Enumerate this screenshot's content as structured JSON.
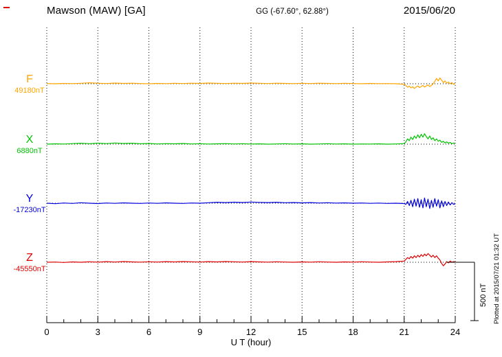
{
  "header": {
    "station": "Mawson (MAW)  [GA]",
    "coords": "GG (-67.60°,  62.88°)",
    "date": "2015/06/20"
  },
  "footer": {
    "plotted_at": "Plotted at 2015/07/21 01:32 UT"
  },
  "colors": {
    "F": "#ffa500",
    "X": "#00c400",
    "Y": "#0000dd",
    "Z": "#e00000",
    "axis": "#000000",
    "mark": "#e00000"
  },
  "chart_data": {
    "type": "line",
    "title": "Mawson (MAW)  [GA]",
    "subtitle": "GG (-67.60°,  62.88°)",
    "date": "2015/06/20",
    "xlabel": "U T (hour)",
    "unit": "nT",
    "xlim": [
      0,
      24
    ],
    "xticks": [
      0,
      3,
      6,
      9,
      12,
      15,
      18,
      21,
      24
    ],
    "grid": "dotted-vertical",
    "scale_bar": {
      "label": "500 nT",
      "value_nT": 500
    },
    "series": [
      {
        "name": "F",
        "baseline_label": "49180nT",
        "baseline_nT": 49180,
        "color": "#ffa500",
        "points": [
          [
            0,
            2
          ],
          [
            0.5,
            0
          ],
          [
            1,
            3
          ],
          [
            1.5,
            1
          ],
          [
            2,
            4
          ],
          [
            2.5,
            8
          ],
          [
            3,
            5
          ],
          [
            3.5,
            2
          ],
          [
            4,
            6
          ],
          [
            4.5,
            3
          ],
          [
            5,
            5
          ],
          [
            5.5,
            2
          ],
          [
            6,
            0
          ],
          [
            6.5,
            3
          ],
          [
            7,
            1
          ],
          [
            7.5,
            4
          ],
          [
            8,
            2
          ],
          [
            8.5,
            5
          ],
          [
            9,
            3
          ],
          [
            9.5,
            6
          ],
          [
            10,
            4
          ],
          [
            10.5,
            2
          ],
          [
            11,
            5
          ],
          [
            11.5,
            3
          ],
          [
            12,
            6
          ],
          [
            12.5,
            4
          ],
          [
            13,
            2
          ],
          [
            13.5,
            5
          ],
          [
            14,
            3
          ],
          [
            14.5,
            1
          ],
          [
            15,
            4
          ],
          [
            15.5,
            2
          ],
          [
            16,
            5
          ],
          [
            16.5,
            3
          ],
          [
            17,
            1
          ],
          [
            17.5,
            4
          ],
          [
            18,
            2
          ],
          [
            18.5,
            0
          ],
          [
            19,
            3
          ],
          [
            19.5,
            1
          ],
          [
            20,
            2
          ],
          [
            20.5,
            0
          ],
          [
            21,
            -5
          ],
          [
            21.1,
            -15
          ],
          [
            21.2,
            -30
          ],
          [
            21.3,
            -20
          ],
          [
            21.4,
            -35
          ],
          [
            21.5,
            -25
          ],
          [
            21.6,
            -40
          ],
          [
            21.7,
            -28
          ],
          [
            21.8,
            -18
          ],
          [
            21.9,
            -33
          ],
          [
            22,
            -24
          ],
          [
            22.1,
            -14
          ],
          [
            22.2,
            -28
          ],
          [
            22.3,
            -18
          ],
          [
            22.4,
            -10
          ],
          [
            22.5,
            -24
          ],
          [
            22.6,
            -14
          ],
          [
            22.7,
            0
          ],
          [
            22.8,
            20
          ],
          [
            22.9,
            45
          ],
          [
            23,
            25
          ],
          [
            23.1,
            50
          ],
          [
            23.2,
            30
          ],
          [
            23.3,
            10
          ],
          [
            23.4,
            25
          ],
          [
            23.5,
            5
          ],
          [
            23.6,
            15
          ],
          [
            23.7,
            0
          ],
          [
            23.8,
            10
          ],
          [
            23.9,
            -5
          ],
          [
            24,
            0
          ]
        ]
      },
      {
        "name": "X",
        "baseline_label": "6880nT",
        "baseline_nT": 6880,
        "color": "#00c400",
        "points": [
          [
            0,
            0
          ],
          [
            0.5,
            3
          ],
          [
            1,
            1
          ],
          [
            1.5,
            5
          ],
          [
            2,
            8
          ],
          [
            2.5,
            4
          ],
          [
            3,
            9
          ],
          [
            3.5,
            5
          ],
          [
            4,
            10
          ],
          [
            4.5,
            6
          ],
          [
            5,
            8
          ],
          [
            5.5,
            4
          ],
          [
            6,
            6
          ],
          [
            6.5,
            2
          ],
          [
            7,
            5
          ],
          [
            7.5,
            3
          ],
          [
            8,
            6
          ],
          [
            8.5,
            2
          ],
          [
            9,
            4
          ],
          [
            9.5,
            1
          ],
          [
            10,
            3
          ],
          [
            10.5,
            5
          ],
          [
            11,
            2
          ],
          [
            11.5,
            4
          ],
          [
            12,
            1
          ],
          [
            12.5,
            3
          ],
          [
            13,
            0
          ],
          [
            13.5,
            2
          ],
          [
            14,
            4
          ],
          [
            14.5,
            1
          ],
          [
            15,
            3
          ],
          [
            15.5,
            0
          ],
          [
            16,
            2
          ],
          [
            16.5,
            4
          ],
          [
            17,
            1
          ],
          [
            17.5,
            3
          ],
          [
            18,
            0
          ],
          [
            18.5,
            2
          ],
          [
            19,
            1
          ],
          [
            19.5,
            3
          ],
          [
            20,
            0
          ],
          [
            20.5,
            2
          ],
          [
            21,
            5
          ],
          [
            21.1,
            20
          ],
          [
            21.2,
            45
          ],
          [
            21.3,
            30
          ],
          [
            21.4,
            60
          ],
          [
            21.5,
            40
          ],
          [
            21.6,
            70
          ],
          [
            21.7,
            50
          ],
          [
            21.8,
            80
          ],
          [
            21.9,
            55
          ],
          [
            22,
            85
          ],
          [
            22.1,
            60
          ],
          [
            22.2,
            90
          ],
          [
            22.3,
            65
          ],
          [
            22.4,
            45
          ],
          [
            22.5,
            70
          ],
          [
            22.6,
            40
          ],
          [
            22.7,
            55
          ],
          [
            22.8,
            30
          ],
          [
            22.9,
            45
          ],
          [
            23,
            25
          ],
          [
            23.1,
            35
          ],
          [
            23.2,
            15
          ],
          [
            23.3,
            25
          ],
          [
            23.4,
            10
          ],
          [
            23.5,
            20
          ],
          [
            23.6,
            8
          ],
          [
            23.7,
            15
          ],
          [
            23.8,
            5
          ],
          [
            23.9,
            10
          ],
          [
            24,
            8
          ]
        ]
      },
      {
        "name": "Y",
        "baseline_label": "-17230nT",
        "baseline_nT": -17230,
        "color": "#0000dd",
        "points": [
          [
            0,
            0
          ],
          [
            0.5,
            -4
          ],
          [
            1,
            2
          ],
          [
            1.5,
            -2
          ],
          [
            2,
            4
          ],
          [
            2.5,
            0
          ],
          [
            3,
            -3
          ],
          [
            3.5,
            2
          ],
          [
            4,
            -1
          ],
          [
            4.5,
            3
          ],
          [
            5,
            0
          ],
          [
            5.5,
            -2
          ],
          [
            6,
            2
          ],
          [
            6.5,
            -1
          ],
          [
            7,
            3
          ],
          [
            7.5,
            0
          ],
          [
            8,
            -2
          ],
          [
            8.5,
            2
          ],
          [
            9,
            0
          ],
          [
            9.5,
            4
          ],
          [
            10,
            8
          ],
          [
            10.5,
            5
          ],
          [
            11,
            9
          ],
          [
            11.5,
            6
          ],
          [
            12,
            10
          ],
          [
            12.5,
            7
          ],
          [
            13,
            5
          ],
          [
            13.5,
            8
          ],
          [
            14,
            4
          ],
          [
            14.5,
            6
          ],
          [
            15,
            3
          ],
          [
            15.5,
            5
          ],
          [
            16,
            2
          ],
          [
            16.5,
            4
          ],
          [
            17,
            1
          ],
          [
            17.5,
            3
          ],
          [
            18,
            0
          ],
          [
            18.5,
            2
          ],
          [
            19,
            -1
          ],
          [
            19.5,
            1
          ],
          [
            20,
            -2
          ],
          [
            20.5,
            0
          ],
          [
            21,
            -3
          ],
          [
            21.1,
            -10
          ],
          [
            21.2,
            15
          ],
          [
            21.3,
            -20
          ],
          [
            21.4,
            25
          ],
          [
            21.5,
            -30
          ],
          [
            21.6,
            35
          ],
          [
            21.7,
            -25
          ],
          [
            21.8,
            40
          ],
          [
            21.9,
            -35
          ],
          [
            22,
            30
          ],
          [
            22.1,
            -40
          ],
          [
            22.2,
            45
          ],
          [
            22.3,
            -30
          ],
          [
            22.4,
            35
          ],
          [
            22.5,
            -45
          ],
          [
            22.6,
            25
          ],
          [
            22.7,
            -35
          ],
          [
            22.8,
            40
          ],
          [
            22.9,
            -25
          ],
          [
            23,
            30
          ],
          [
            23.1,
            -40
          ],
          [
            23.2,
            20
          ],
          [
            23.3,
            -30
          ],
          [
            23.4,
            15
          ],
          [
            23.5,
            -20
          ],
          [
            23.6,
            10
          ],
          [
            23.7,
            -15
          ],
          [
            23.8,
            5
          ],
          [
            23.9,
            -10
          ],
          [
            24,
            -5
          ]
        ]
      },
      {
        "name": "Z",
        "baseline_label": "-45550nT",
        "baseline_nT": -45550,
        "color": "#e00000",
        "points": [
          [
            0,
            0
          ],
          [
            0.5,
            2
          ],
          [
            1,
            -2
          ],
          [
            1.5,
            3
          ],
          [
            2,
            0
          ],
          [
            2.5,
            4
          ],
          [
            3,
            1
          ],
          [
            3.5,
            5
          ],
          [
            4,
            2
          ],
          [
            4.5,
            6
          ],
          [
            5,
            3
          ],
          [
            5.5,
            1
          ],
          [
            6,
            4
          ],
          [
            6.5,
            2
          ],
          [
            7,
            5
          ],
          [
            7.5,
            3
          ],
          [
            8,
            6
          ],
          [
            8.5,
            4
          ],
          [
            9,
            2
          ],
          [
            9.5,
            5
          ],
          [
            10,
            3
          ],
          [
            10.5,
            6
          ],
          [
            11,
            4
          ],
          [
            11.5,
            2
          ],
          [
            12,
            5
          ],
          [
            12.5,
            3
          ],
          [
            13,
            1
          ],
          [
            13.5,
            4
          ],
          [
            14,
            2
          ],
          [
            14.5,
            0
          ],
          [
            15,
            3
          ],
          [
            15.5,
            1
          ],
          [
            16,
            4
          ],
          [
            16.5,
            2
          ],
          [
            17,
            0
          ],
          [
            17.5,
            3
          ],
          [
            18,
            1
          ],
          [
            18.5,
            4
          ],
          [
            19,
            2
          ],
          [
            19.5,
            0
          ],
          [
            20,
            3
          ],
          [
            20.5,
            5
          ],
          [
            21,
            10
          ],
          [
            21.1,
            25
          ],
          [
            21.2,
            40
          ],
          [
            21.3,
            30
          ],
          [
            21.4,
            50
          ],
          [
            21.5,
            35
          ],
          [
            21.6,
            55
          ],
          [
            21.7,
            40
          ],
          [
            21.8,
            60
          ],
          [
            21.9,
            45
          ],
          [
            22,
            65
          ],
          [
            22.1,
            50
          ],
          [
            22.2,
            70
          ],
          [
            22.3,
            55
          ],
          [
            22.4,
            75
          ],
          [
            22.5,
            60
          ],
          [
            22.6,
            45
          ],
          [
            22.7,
            60
          ],
          [
            22.8,
            40
          ],
          [
            22.9,
            55
          ],
          [
            23,
            35
          ],
          [
            23.1,
            20
          ],
          [
            23.2,
            -10
          ],
          [
            23.3,
            -30
          ],
          [
            23.4,
            -15
          ],
          [
            23.5,
            5
          ],
          [
            23.6,
            -5
          ],
          [
            23.7,
            10
          ],
          [
            23.8,
            0
          ],
          [
            23.9,
            5
          ],
          [
            24,
            0
          ]
        ]
      }
    ]
  }
}
